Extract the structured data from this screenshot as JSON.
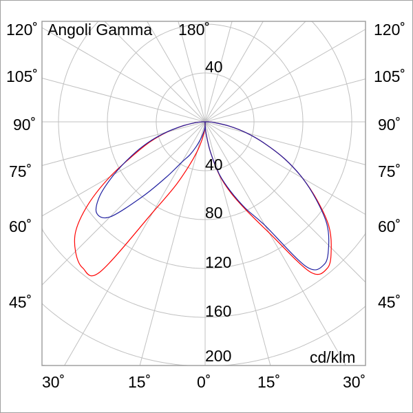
{
  "chart_data": {
    "type": "polar-line",
    "title": "Angoli Gamma",
    "unit": "cd/klm",
    "radial_ticks": [
      "40",
      "40",
      "80",
      "120",
      "160",
      "200"
    ],
    "radial_range": [
      0,
      200
    ],
    "radial_rings": [
      40,
      80,
      120,
      160,
      200
    ],
    "angle_step_deg": 15,
    "grid": true,
    "angle_labels": {
      "top": "180˚",
      "left": [
        "120˚",
        "105˚",
        "90˚",
        "75˚",
        "60˚",
        "45˚"
      ],
      "right": [
        "120˚",
        "105˚",
        "90˚",
        "75˚",
        "60˚",
        "45˚"
      ],
      "bottom": [
        "30˚",
        "15˚",
        "0˚",
        "15˚",
        "30˚"
      ]
    },
    "gamma_deg": [
      0,
      5,
      10,
      15,
      20,
      25,
      30,
      35,
      40,
      45,
      50,
      55,
      60,
      65,
      70,
      75,
      80,
      85,
      90
    ],
    "series": [
      {
        "color": "#ff0000",
        "half": "left",
        "values": [
          3,
          8,
          15,
          25,
          38,
          58,
          85,
          150,
          156,
          150,
          138,
          116,
          90,
          65,
          48,
          32,
          18,
          8,
          3
        ]
      },
      {
        "color": "#ff0000",
        "half": "right",
        "values": [
          3,
          10,
          25,
          45,
          62,
          80,
          105,
          150,
          156,
          146,
          132,
          112,
          92,
          72,
          52,
          35,
          20,
          8,
          3
        ]
      },
      {
        "color": "#2020a0",
        "half": "left",
        "values": [
          3,
          6,
          10,
          15,
          22,
          30,
          38,
          55,
          80,
          110,
          116,
          105,
          86,
          67,
          50,
          33,
          18,
          8,
          3
        ]
      },
      {
        "color": "#2020a0",
        "half": "right",
        "values": [
          3,
          10,
          25,
          44,
          60,
          78,
          98,
          145,
          152,
          143,
          130,
          111,
          92,
          72,
          52,
          35,
          20,
          8,
          3
        ]
      }
    ]
  }
}
